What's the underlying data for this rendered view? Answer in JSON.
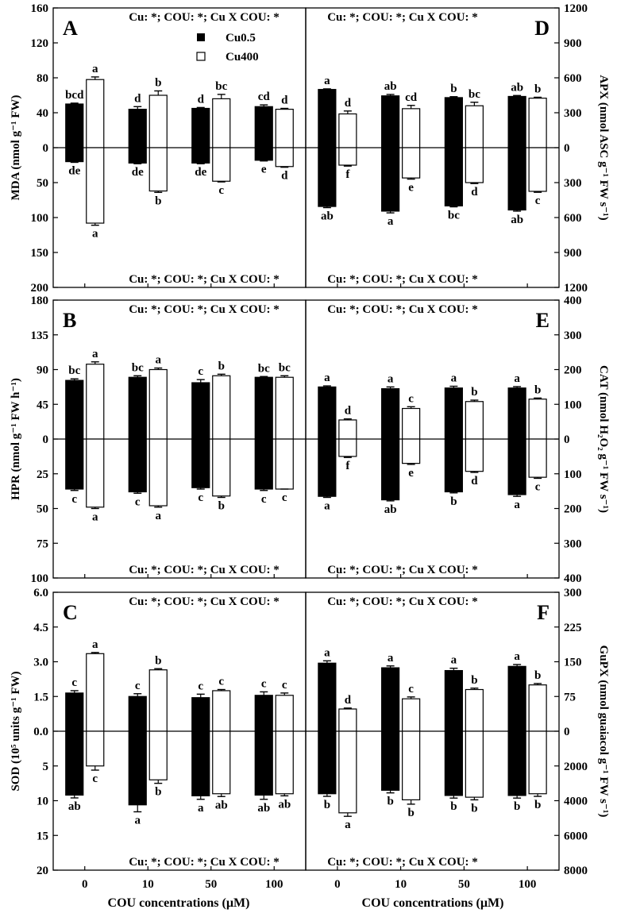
{
  "figure": {
    "x_axis_title": "COU concentrations (µM)",
    "legend": [
      {
        "label": "Cu0.5",
        "swatch": "black"
      },
      {
        "label": "Cu400",
        "swatch": "white"
      }
    ]
  },
  "chart_data": [
    {
      "panel": "A",
      "type": "bar",
      "column": "left",
      "row": 0,
      "categories": [
        "0",
        "10",
        "50",
        "100"
      ],
      "xlabel": "COU concentrations (µM)",
      "ylabel": "MDA  (nmol g⁻¹ FW)",
      "label_side": "left",
      "stat_top": "Cu: *; COU: *; Cu X COU: *",
      "stat_bottom": "Cu: *; COU: *; Cu X COU: *",
      "top": {
        "ylim": [
          0,
          160
        ],
        "ticks": [
          0,
          40,
          80,
          120,
          160
        ],
        "series": [
          {
            "name": "Cu0.5",
            "values": [
              50,
              44,
              45,
              47
            ],
            "errors": [
              1,
              3,
              1,
              2
            ],
            "letters": [
              "bcd",
              "d",
              "d",
              "cd"
            ]
          },
          {
            "name": "Cu400",
            "values": [
              78,
              60,
              56,
              44
            ],
            "errors": [
              3,
              5,
              5,
              1
            ],
            "letters": [
              "a",
              "b",
              "bc",
              "d"
            ]
          }
        ]
      },
      "bottom": {
        "ylim": [
          0,
          200
        ],
        "ticks": [
          0,
          50,
          100,
          150,
          200
        ],
        "series": [
          {
            "name": "Cu0.5",
            "values": [
              20,
              22,
              22,
              18
            ],
            "errors": [
              1,
              1,
              1,
              1
            ],
            "letters": [
              "de",
              "de",
              "de",
              "e"
            ]
          },
          {
            "name": "Cu400",
            "values": [
              108,
              62,
              48,
              27
            ],
            "errors": [
              3,
              2,
              1,
              1
            ],
            "letters": [
              "a",
              "b",
              "c",
              "d"
            ]
          }
        ]
      }
    },
    {
      "panel": "D",
      "type": "bar",
      "column": "right",
      "row": 0,
      "categories": [
        "0",
        "10",
        "50",
        "100"
      ],
      "xlabel": "COU concentrations (µM)",
      "ylabel": "APX  (nmol ASC g⁻¹ FW s⁻¹)",
      "label_side": "right",
      "stat_top": "Cu: *; COU: *; Cu X COU: *",
      "stat_bottom": "Cu: *; COU: *; Cu X COU: *",
      "top": {
        "ylim": [
          0,
          1200
        ],
        "ticks": [
          0,
          300,
          600,
          900,
          1200
        ],
        "series": [
          {
            "name": "Cu0.5",
            "values": [
              500,
              445,
              430,
              440
            ],
            "errors": [
              5,
              12,
              8,
              8
            ],
            "letters": [
              "a",
              "ab",
              "b",
              "ab"
            ]
          },
          {
            "name": "Cu400",
            "values": [
              290,
              335,
              360,
              425
            ],
            "errors": [
              25,
              28,
              30,
              8
            ],
            "letters": [
              "d",
              "cd",
              "bc",
              "b"
            ]
          }
        ]
      },
      "bottom": {
        "ylim": [
          0,
          1200
        ],
        "ticks": [
          0,
          300,
          600,
          900,
          1200
        ],
        "series": [
          {
            "name": "Cu0.5",
            "values": [
              505,
              545,
              500,
              535
            ],
            "errors": [
              10,
              15,
              8,
              10
            ],
            "letters": [
              "ab",
              "a",
              "bc",
              "ab"
            ]
          },
          {
            "name": "Cu400",
            "values": [
              150,
              260,
              300,
              375
            ],
            "errors": [
              8,
              10,
              8,
              8
            ],
            "letters": [
              "f",
              "e",
              "d",
              "c"
            ]
          }
        ]
      }
    },
    {
      "panel": "B",
      "type": "bar",
      "column": "left",
      "row": 1,
      "categories": [
        "0",
        "10",
        "50",
        "100"
      ],
      "xlabel": "COU concentrations (µM)",
      "ylabel": "HPR  (nmol g⁻¹ FW h⁻¹)",
      "label_side": "left",
      "stat_top": "Cu: *; COU: *; Cu X COU: *",
      "stat_bottom": "Cu: *; COU: *; Cu X COU: *",
      "top": {
        "ylim": [
          0,
          180
        ],
        "ticks": [
          0,
          45,
          90,
          135,
          180
        ],
        "series": [
          {
            "name": "Cu0.5",
            "values": [
              76,
              80,
              73,
              80
            ],
            "errors": [
              2,
              2,
              4,
              1
            ],
            "letters": [
              "bc",
              "bc",
              "c",
              "bc"
            ]
          },
          {
            "name": "Cu400",
            "values": [
              97,
              90,
              82,
              80
            ],
            "errors": [
              3,
              2,
              2,
              2
            ],
            "letters": [
              "a",
              "a",
              "b",
              "bc"
            ]
          }
        ]
      },
      "bottom": {
        "ylim": [
          0,
          100
        ],
        "ticks": [
          0,
          25,
          50,
          75,
          100
        ],
        "series": [
          {
            "name": "Cu0.5",
            "values": [
              36,
              38,
              35,
              36
            ],
            "errors": [
              1,
              1,
              1,
              1
            ],
            "letters": [
              "c",
              "c",
              "c",
              "c"
            ]
          },
          {
            "name": "Cu400",
            "values": [
              49,
              48,
              41,
              36
            ],
            "errors": [
              1,
              1,
              1,
              0
            ],
            "letters": [
              "a",
              "a",
              "b",
              "c"
            ]
          }
        ]
      }
    },
    {
      "panel": "E",
      "type": "bar",
      "column": "right",
      "row": 1,
      "categories": [
        "0",
        "10",
        "50",
        "100"
      ],
      "xlabel": "COU concentrations (µM)",
      "ylabel": "CAT  (nmol H₂O₂ g⁻¹ FW s⁻¹)",
      "label_side": "right",
      "stat_top": "Cu: *; COU: *; Cu X COU: *",
      "stat_bottom": "Cu: *; COU: *; Cu X COU: *",
      "top": {
        "ylim": [
          0,
          400
        ],
        "ticks": [
          0,
          100,
          200,
          300,
          400
        ],
        "series": [
          {
            "name": "Cu0.5",
            "values": [
              150,
              145,
              147,
              147
            ],
            "errors": [
              3,
              5,
              5,
              4
            ],
            "letters": [
              "a",
              "a",
              "a",
              "a"
            ]
          },
          {
            "name": "Cu400",
            "values": [
              55,
              88,
              108,
              115
            ],
            "errors": [
              3,
              5,
              4,
              3
            ],
            "letters": [
              "d",
              "c",
              "b",
              "b"
            ]
          }
        ]
      },
      "bottom": {
        "ylim": [
          0,
          400
        ],
        "ticks": [
          0,
          100,
          200,
          300,
          400
        ],
        "series": [
          {
            "name": "Cu0.5",
            "values": [
              165,
              175,
              152,
              160
            ],
            "errors": [
              3,
              3,
              3,
              5
            ],
            "letters": [
              "a",
              "ab",
              "b",
              "a"
            ]
          },
          {
            "name": "Cu400",
            "values": [
              50,
              70,
              93,
              110
            ],
            "errors": [
              3,
              3,
              3,
              3
            ],
            "letters": [
              "f",
              "e",
              "d",
              "c"
            ]
          }
        ]
      }
    },
    {
      "panel": "C",
      "type": "bar",
      "column": "left",
      "row": 2,
      "categories": [
        "0",
        "10",
        "50",
        "100"
      ],
      "xlabel": "COU concentrations (µM)",
      "ylabel": "SOD  (10⁵ units g⁻¹ FW)",
      "label_side": "left",
      "stat_top": "Cu: *; COU: *; Cu X COU: *",
      "stat_bottom": "Cu: *; COU: *; Cu X COU: *",
      "top": {
        "ylim": [
          0.0,
          6.0
        ],
        "ticks": [
          "0.0",
          "1.5",
          "3.0",
          "4.5",
          "6.0"
        ],
        "series": [
          {
            "name": "Cu0.5",
            "values": [
              1.65,
              1.5,
              1.45,
              1.55
            ],
            "errors": [
              0.1,
              0.12,
              0.15,
              0.15
            ],
            "letters": [
              "c",
              "c",
              "c",
              "c"
            ]
          },
          {
            "name": "Cu400",
            "values": [
              3.35,
              2.65,
              1.75,
              1.55
            ],
            "errors": [
              0.05,
              0.05,
              0.05,
              0.1
            ],
            "letters": [
              "a",
              "b",
              "c",
              "c"
            ]
          }
        ]
      },
      "bottom": {
        "ylim": [
          0,
          20
        ],
        "ticks": [
          0,
          5,
          10,
          15,
          20
        ],
        "series": [
          {
            "name": "Cu0.5",
            "values": [
              9.2,
              10.6,
              9.3,
              9.2
            ],
            "errors": [
              0.4,
              1.0,
              0.5,
              0.6
            ],
            "letters": [
              "ab",
              "a",
              "a",
              "ab"
            ]
          },
          {
            "name": "Cu400",
            "values": [
              5.0,
              7.0,
              9.0,
              9.0
            ],
            "errors": [
              0.6,
              0.5,
              0.4,
              0.3
            ],
            "letters": [
              "c",
              "b",
              "ab",
              "ab"
            ]
          }
        ]
      }
    },
    {
      "panel": "F",
      "type": "bar",
      "column": "right",
      "row": 2,
      "categories": [
        "0",
        "10",
        "50",
        "100"
      ],
      "xlabel": "COU concentrations (µM)",
      "ylabel": "GuPX  (nmol guaiacol g⁻¹ FW s⁻¹)",
      "label_side": "right",
      "stat_top": "Cu: *; COU: *; Cu X COU: *",
      "stat_bottom": "Cu: *; COU: *; Cu X COU: *",
      "top": {
        "ylim": [
          0,
          300
        ],
        "ticks": [
          0,
          75,
          150,
          225,
          300
        ],
        "series": [
          {
            "name": "Cu0.5",
            "values": [
              147,
              137,
              131,
              140
            ],
            "errors": [
              5,
              4,
              5,
              4
            ],
            "letters": [
              "a",
              "a",
              "a",
              "a"
            ]
          },
          {
            "name": "Cu400",
            "values": [
              48,
              70,
              90,
              100
            ],
            "errors": [
              2,
              4,
              3,
              3
            ],
            "letters": [
              "d",
              "c",
              "b",
              "b"
            ]
          }
        ]
      },
      "bottom": {
        "ylim": [
          0,
          8000
        ],
        "ticks": [
          0,
          2000,
          4000,
          6000,
          8000
        ],
        "series": [
          {
            "name": "Cu0.5",
            "values": [
              3600,
              3400,
              3700,
              3700
            ],
            "errors": [
              150,
              150,
              150,
              150
            ],
            "letters": [
              "b",
              "b",
              "b",
              "b"
            ]
          },
          {
            "name": "Cu400",
            "values": [
              4700,
              3950,
              3800,
              3600
            ],
            "errors": [
              200,
              250,
              150,
              150
            ],
            "letters": [
              "a",
              "b",
              "b",
              "b"
            ]
          }
        ]
      }
    }
  ]
}
